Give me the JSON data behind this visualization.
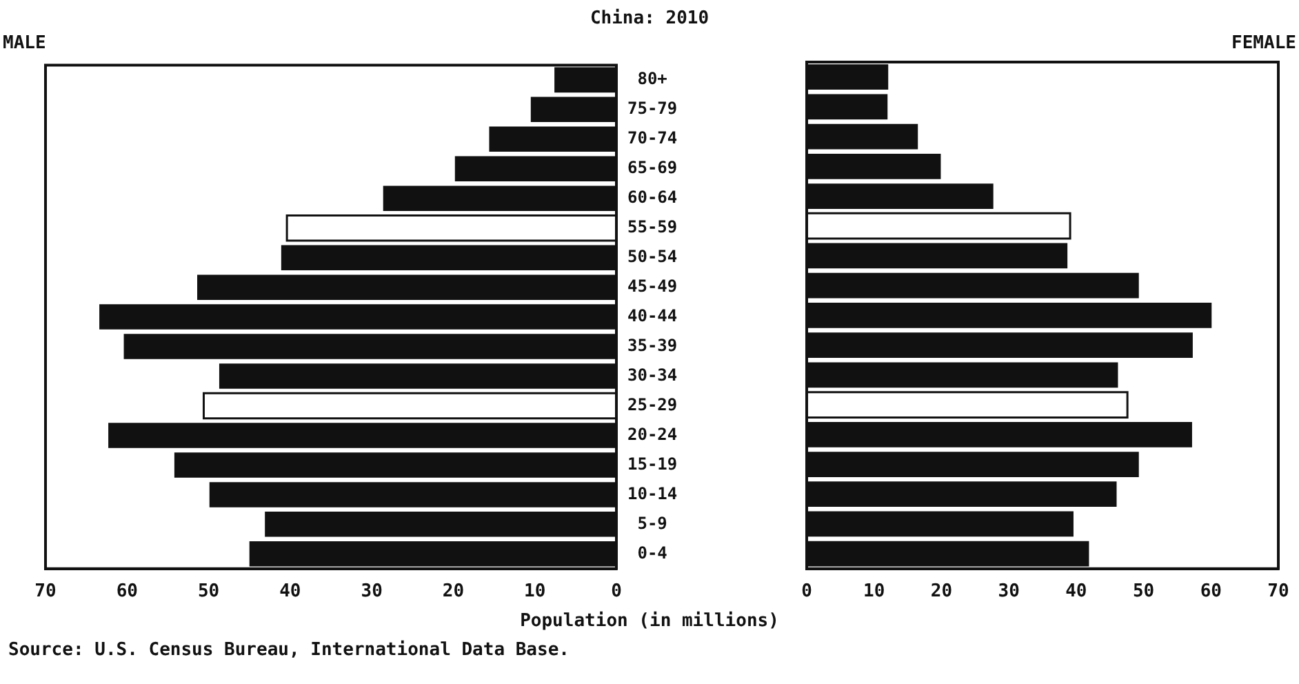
{
  "chart_data": [
    {
      "type": "bar",
      "orientation": "horizontal",
      "title": "China: 2010",
      "xlabel": "Population (in millions)",
      "annotations": [
        "Source: U.S. Census Bureau, International Data Base."
      ],
      "categories": [
        "80+",
        "75-79",
        "70-74",
        "65-69",
        "60-64",
        "55-59",
        "50-54",
        "45-49",
        "40-44",
        "35-39",
        "30-34",
        "25-29",
        "20-24",
        "15-19",
        "10-14",
        "5-9",
        "0-4"
      ],
      "series": [
        {
          "name": "MALE",
          "colors": [
            "#111111",
            "#111111",
            "#111111",
            "#111111",
            "#111111",
            "#ffffff",
            "#111111",
            "#111111",
            "#111111",
            "#111111",
            "#111111",
            "#ffffff",
            "#111111",
            "#111111",
            "#111111",
            "#111111",
            "#111111"
          ],
          "values": [
            7.6,
            10.5,
            15.6,
            19.8,
            28.6,
            40.4,
            41.1,
            51.4,
            63.4,
            60.4,
            48.7,
            50.6,
            62.3,
            54.2,
            49.9,
            43.1,
            45.0
          ]
        }
      ],
      "xlim": [
        70,
        0
      ],
      "xticks": [
        70,
        60,
        50,
        40,
        30,
        20,
        10,
        0
      ],
      "grid": false,
      "legend": false
    },
    {
      "type": "bar",
      "orientation": "horizontal",
      "categories": [
        null,
        null,
        null,
        null,
        null,
        null,
        null,
        null,
        null,
        null,
        null,
        null,
        null,
        null,
        null,
        null,
        null
      ],
      "series": [
        {
          "name": "FEMALE",
          "colors": [
            "#111111",
            "#111111",
            "#111111",
            "#111111",
            "#111111",
            "#ffffff",
            "#111111",
            "#111111",
            "#111111",
            "#111111",
            "#111111",
            "#ffffff",
            "#111111",
            "#111111",
            "#111111",
            "#111111",
            "#111111"
          ],
          "values": [
            12.1,
            12.0,
            16.5,
            19.9,
            27.7,
            39.1,
            38.7,
            49.3,
            60.1,
            57.3,
            46.2,
            47.6,
            57.2,
            49.3,
            46.0,
            39.6,
            41.9
          ]
        }
      ],
      "xlim": [
        0,
        70
      ],
      "xticks": [
        0,
        10,
        20,
        30,
        40,
        50,
        60,
        70
      ],
      "grid": false,
      "legend": false,
      "tick_labels": "x"
    }
  ]
}
